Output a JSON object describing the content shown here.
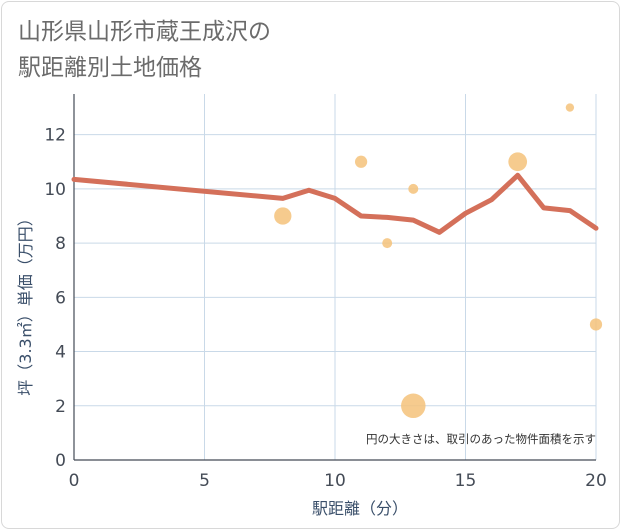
{
  "chart_data": {
    "type": "line",
    "title": "山形県山形市蔵王成沢の駅距離別土地価格",
    "title_lines": [
      "山形県山形市蔵王成沢の",
      "駅距離別土地価格"
    ],
    "xlabel": "駅距離（分）",
    "ylabel": "坪（3.3㎡）単価（万円）",
    "xlim": [
      0,
      20
    ],
    "ylim": [
      0,
      13.5
    ],
    "x_ticks": [
      0,
      5,
      10,
      15,
      20
    ],
    "y_ticks": [
      0,
      2,
      4,
      6,
      8,
      10,
      12
    ],
    "grid": true,
    "annotation": "円の大きさは、取引のあった物件面積を示す",
    "colors": {
      "line": "#d4705a",
      "bubble": "#f5c27a",
      "grid": "#c9d9e8",
      "axis": "#444b56"
    },
    "line_series": {
      "x": [
        0,
        8,
        9,
        10,
        11,
        12,
        13,
        14,
        15,
        16,
        17,
        18,
        19,
        20
      ],
      "y": [
        10.35,
        9.65,
        9.95,
        9.65,
        9.0,
        8.95,
        8.85,
        8.4,
        9.1,
        9.6,
        10.5,
        9.3,
        9.2,
        8.55
      ]
    },
    "bubbles": [
      {
        "x": 8,
        "y": 9.0,
        "size": 3
      },
      {
        "x": 11,
        "y": 11.0,
        "size": 1.5
      },
      {
        "x": 12,
        "y": 8.0,
        "size": 1
      },
      {
        "x": 13,
        "y": 10.0,
        "size": 1
      },
      {
        "x": 13,
        "y": 2.0,
        "size": 6
      },
      {
        "x": 17,
        "y": 11.0,
        "size": 3.5
      },
      {
        "x": 19,
        "y": 13.0,
        "size": 0.7
      },
      {
        "x": 20,
        "y": 5.0,
        "size": 1.5
      }
    ]
  }
}
